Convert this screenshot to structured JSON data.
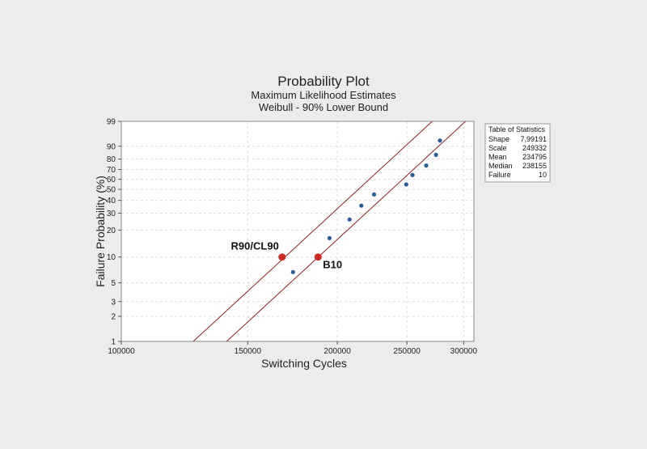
{
  "chart_data": {
    "type": "scatter",
    "title": "Probability Plot",
    "subtitle_1": "Maximum Likelihood Estimates",
    "subtitle_2": "Weibull  - 90% Lower Bound",
    "xlabel": "Switching Cycles",
    "ylabel": "Failure Probability (%)",
    "x_scale": "log",
    "y_scale": "weibull",
    "xlim": [
      100000,
      310000
    ],
    "ylim": [
      1,
      99
    ],
    "grid": true,
    "x_ticks": [
      {
        "value": 100000,
        "label": "100000"
      },
      {
        "value": 150000,
        "label": "150000"
      },
      {
        "value": 200000,
        "label": "200000"
      },
      {
        "value": 250000,
        "label": "250000"
      },
      {
        "value": 300000,
        "label": "300000"
      }
    ],
    "y_ticks": [
      {
        "value": 1,
        "label": "1"
      },
      {
        "value": 2,
        "label": "2"
      },
      {
        "value": 3,
        "label": "3"
      },
      {
        "value": 5,
        "label": "5"
      },
      {
        "value": 10,
        "label": "10"
      },
      {
        "value": 20,
        "label": "20"
      },
      {
        "value": 30,
        "label": "30"
      },
      {
        "value": 40,
        "label": "40"
      },
      {
        "value": 50,
        "label": "50"
      },
      {
        "value": 60,
        "label": "60"
      },
      {
        "value": 70,
        "label": "70"
      },
      {
        "value": 80,
        "label": "80"
      },
      {
        "value": 90,
        "label": "90"
      },
      {
        "value": 99,
        "label": "99"
      }
    ],
    "points": [
      {
        "x": 173500,
        "y": 6.7
      },
      {
        "x": 195000,
        "y": 16.3
      },
      {
        "x": 208000,
        "y": 25.9
      },
      {
        "x": 216000,
        "y": 35.6
      },
      {
        "x": 225000,
        "y": 45.2
      },
      {
        "x": 249500,
        "y": 54.8
      },
      {
        "x": 254500,
        "y": 64.4
      },
      {
        "x": 266000,
        "y": 74.0
      },
      {
        "x": 274500,
        "y": 83.7
      },
      {
        "x": 278000,
        "y": 93.3
      }
    ],
    "fit_line": {
      "shape": 7.99191,
      "scale": 249332
    },
    "lower_bound": {
      "shape": 7.99191,
      "scale": 224000
    },
    "annotations": [
      {
        "label": "R90/CL90",
        "x": 167500,
        "y": 10,
        "color": "#cc2a22"
      },
      {
        "label": "B10",
        "x": 188000,
        "y": 10,
        "color": "#cc2a22"
      }
    ],
    "point_color": "#2d5d9a",
    "line_color": "#8b2323",
    "stats_table": {
      "title": "Table of Statistics",
      "rows": [
        {
          "label": "Shape",
          "value": "7,99191"
        },
        {
          "label": "Scale",
          "value": "249332"
        },
        {
          "label": "Mean",
          "value": "234795"
        },
        {
          "label": "Median",
          "value": "238155"
        },
        {
          "label": "Failure",
          "value": "10"
        }
      ]
    }
  }
}
